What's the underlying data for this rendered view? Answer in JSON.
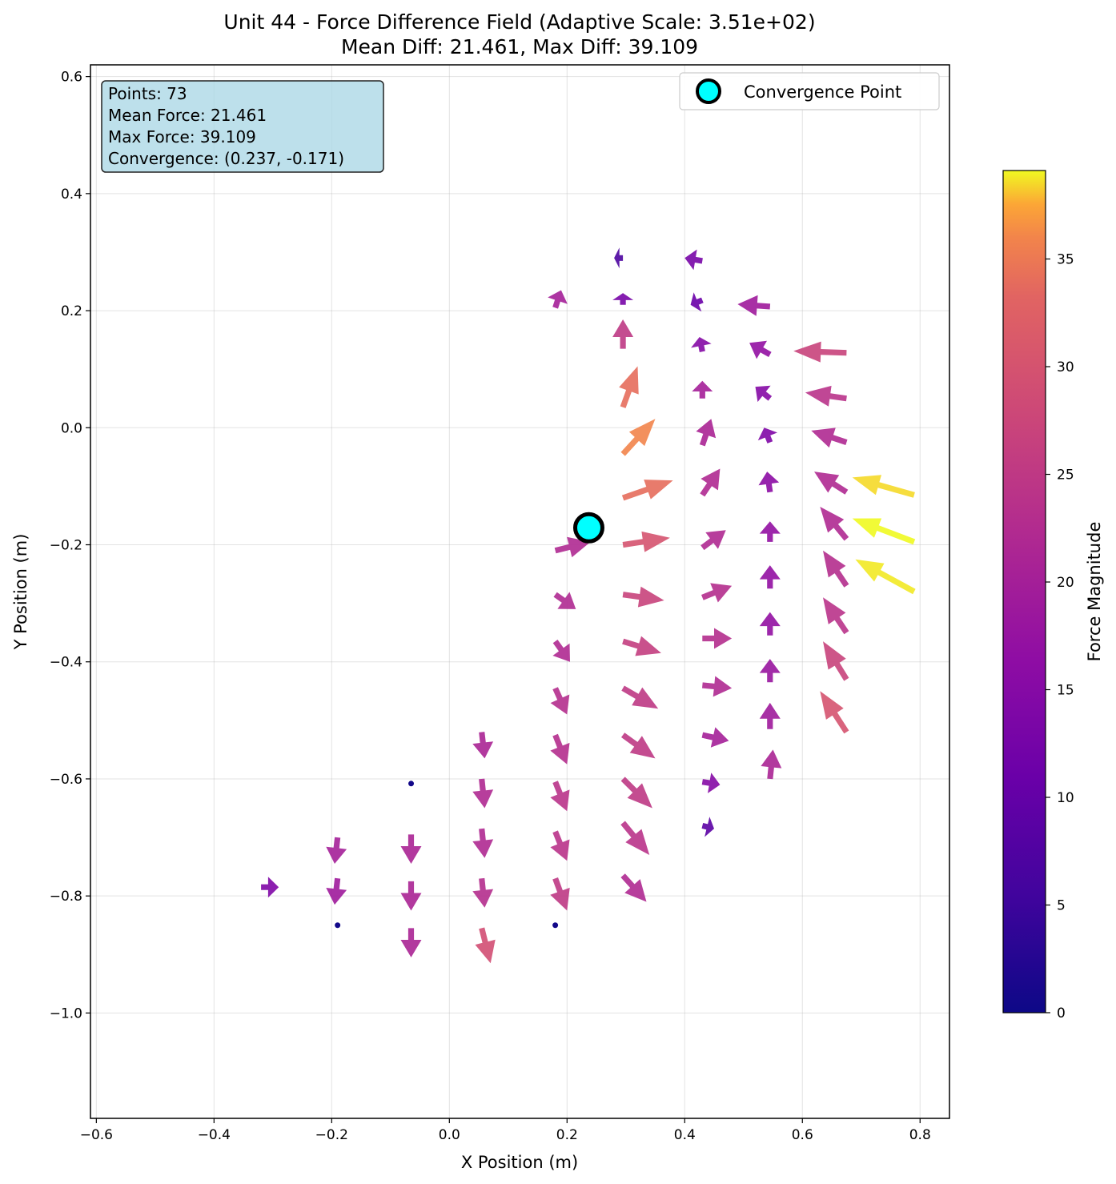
{
  "chart_data": {
    "type": "quiver",
    "title": "Unit 44 - Force Difference Field (Adaptive Scale: 3.51e+02)",
    "subtitle": "Mean Diff: 21.461, Max Diff: 39.109",
    "xlabel": "X Position (m)",
    "ylabel": "Y Position (m)",
    "xlim": [
      -0.61,
      0.85
    ],
    "ylim": [
      -1.18,
      0.62
    ],
    "xticks": [
      "−0.6",
      "−0.4",
      "−0.2",
      "0.0",
      "0.2",
      "0.4",
      "0.6",
      "0.8"
    ],
    "yticks": [
      "0.6",
      "0.4",
      "0.2",
      "0.0",
      "−0.2",
      "−0.4",
      "−0.6",
      "−0.8",
      "−1.0"
    ],
    "grid": true,
    "info_box": {
      "lines": [
        "Points: 73",
        "Mean Force: 21.461",
        "Max Force: 39.109",
        "Convergence: (0.237, -0.171)"
      ],
      "background": "#add8e6"
    },
    "legend": {
      "label": "Convergence Point",
      "location": "upper right"
    },
    "convergence_point": {
      "x": 0.237,
      "y": -0.171,
      "color": "#00ffff"
    },
    "colorbar": {
      "label": "Force Magnitude",
      "colormap": "plasma",
      "range": [
        0,
        39.109
      ],
      "ticks": [
        "0",
        "5",
        "10",
        "15",
        "20",
        "25",
        "30",
        "35"
      ]
    },
    "vectors": [
      {
        "x": 0.79,
        "y": -0.115,
        "u": -0.105,
        "v": 0.03,
        "m": 38.5
      },
      {
        "x": 0.79,
        "y": -0.195,
        "u": -0.105,
        "v": 0.04,
        "m": 39.1
      },
      {
        "x": 0.79,
        "y": -0.28,
        "u": -0.1,
        "v": 0.055,
        "m": 38.8
      },
      {
        "x": 0.675,
        "y": 0.128,
        "u": -0.09,
        "v": 0.003,
        "m": 27
      },
      {
        "x": 0.675,
        "y": 0.05,
        "u": -0.07,
        "v": 0.01,
        "m": 24
      },
      {
        "x": 0.675,
        "y": -0.025,
        "u": -0.06,
        "v": 0.02,
        "m": 22
      },
      {
        "x": 0.675,
        "y": -0.11,
        "u": -0.055,
        "v": 0.035,
        "m": 22
      },
      {
        "x": 0.675,
        "y": -0.19,
        "u": -0.045,
        "v": 0.055,
        "m": 22
      },
      {
        "x": 0.675,
        "y": -0.27,
        "u": -0.04,
        "v": 0.06,
        "m": 23
      },
      {
        "x": 0.675,
        "y": -0.35,
        "u": -0.04,
        "v": 0.06,
        "m": 24
      },
      {
        "x": 0.675,
        "y": -0.43,
        "u": -0.04,
        "v": 0.065,
        "m": 27
      },
      {
        "x": 0.675,
        "y": -0.52,
        "u": -0.045,
        "v": 0.07,
        "m": 30
      },
      {
        "x": 0.545,
        "y": 0.207,
        "u": -0.055,
        "v": 0.004,
        "m": 19
      },
      {
        "x": 0.545,
        "y": 0.125,
        "u": -0.035,
        "v": 0.02,
        "m": 17
      },
      {
        "x": 0.545,
        "y": 0.05,
        "u": -0.025,
        "v": 0.02,
        "m": 15
      },
      {
        "x": 0.545,
        "y": -0.025,
        "u": -0.01,
        "v": 0.025,
        "m": 14
      },
      {
        "x": 0.545,
        "y": -0.11,
        "u": -0.005,
        "v": 0.035,
        "m": 16
      },
      {
        "x": 0.545,
        "y": -0.195,
        "u": 0.0,
        "v": 0.035,
        "m": 17
      },
      {
        "x": 0.545,
        "y": -0.275,
        "u": 0.0,
        "v": 0.04,
        "m": 17
      },
      {
        "x": 0.545,
        "y": -0.355,
        "u": 0.0,
        "v": 0.04,
        "m": 17
      },
      {
        "x": 0.545,
        "y": -0.435,
        "u": 0.0,
        "v": 0.04,
        "m": 18
      },
      {
        "x": 0.545,
        "y": -0.515,
        "u": 0.0,
        "v": 0.045,
        "m": 19
      },
      {
        "x": 0.545,
        "y": -0.6,
        "u": 0.005,
        "v": 0.05,
        "m": 21
      },
      {
        "x": 0.43,
        "y": 0.285,
        "u": -0.03,
        "v": 0.005,
        "m": 13
      },
      {
        "x": 0.43,
        "y": 0.218,
        "u": -0.02,
        "v": -0.008,
        "m": 11
      },
      {
        "x": 0.43,
        "y": 0.13,
        "u": -0.005,
        "v": 0.025,
        "m": 15
      },
      {
        "x": 0.43,
        "y": 0.05,
        "u": 0.0,
        "v": 0.03,
        "m": 20
      },
      {
        "x": 0.43,
        "y": -0.03,
        "u": 0.015,
        "v": 0.045,
        "m": 21
      },
      {
        "x": 0.43,
        "y": -0.115,
        "u": 0.03,
        "v": 0.045,
        "m": 22
      },
      {
        "x": 0.43,
        "y": -0.205,
        "u": 0.04,
        "v": 0.03,
        "m": 22
      },
      {
        "x": 0.43,
        "y": -0.29,
        "u": 0.05,
        "v": 0.02,
        "m": 23
      },
      {
        "x": 0.43,
        "y": -0.36,
        "u": 0.05,
        "v": 0.0,
        "m": 23
      },
      {
        "x": 0.43,
        "y": -0.44,
        "u": 0.05,
        "v": -0.005,
        "m": 22
      },
      {
        "x": 0.43,
        "y": -0.525,
        "u": 0.045,
        "v": -0.01,
        "m": 20
      },
      {
        "x": 0.43,
        "y": -0.605,
        "u": 0.03,
        "v": -0.005,
        "m": 15
      },
      {
        "x": 0.43,
        "y": -0.68,
        "u": 0.02,
        "v": -0.005,
        "m": 9
      },
      {
        "x": 0.295,
        "y": 0.29,
        "u": -0.015,
        "v": 0.0,
        "m": 7
      },
      {
        "x": 0.295,
        "y": 0.21,
        "u": 0.0,
        "v": 0.02,
        "m": 13
      },
      {
        "x": 0.295,
        "y": 0.135,
        "u": 0.0,
        "v": 0.05,
        "m": 25
      },
      {
        "x": 0.295,
        "y": 0.035,
        "u": 0.025,
        "v": 0.07,
        "m": 34
      },
      {
        "x": 0.295,
        "y": -0.045,
        "u": 0.055,
        "v": 0.06,
        "m": 36
      },
      {
        "x": 0.295,
        "y": -0.12,
        "u": 0.085,
        "v": 0.03,
        "m": 34
      },
      {
        "x": 0.295,
        "y": -0.2,
        "u": 0.08,
        "v": 0.012,
        "m": 30
      },
      {
        "x": 0.295,
        "y": -0.285,
        "u": 0.07,
        "v": -0.01,
        "m": 27
      },
      {
        "x": 0.295,
        "y": -0.365,
        "u": 0.065,
        "v": -0.02,
        "m": 26
      },
      {
        "x": 0.295,
        "y": -0.445,
        "u": 0.06,
        "v": -0.035,
        "m": 25
      },
      {
        "x": 0.295,
        "y": -0.525,
        "u": 0.055,
        "v": -0.04,
        "m": 25
      },
      {
        "x": 0.295,
        "y": -0.6,
        "u": 0.05,
        "v": -0.05,
        "m": 25
      },
      {
        "x": 0.295,
        "y": -0.675,
        "u": 0.045,
        "v": -0.055,
        "m": 24
      },
      {
        "x": 0.295,
        "y": -0.765,
        "u": 0.04,
        "v": -0.045,
        "m": 22
      },
      {
        "x": 0.18,
        "y": 0.205,
        "u": 0.01,
        "v": 0.03,
        "m": 20
      },
      {
        "x": 0.18,
        "y": -0.21,
        "u": 0.06,
        "v": 0.015,
        "m": 22
      },
      {
        "x": 0.18,
        "y": -0.285,
        "u": 0.035,
        "v": -0.025,
        "m": 22
      },
      {
        "x": 0.18,
        "y": -0.365,
        "u": 0.025,
        "v": -0.035,
        "m": 22
      },
      {
        "x": 0.18,
        "y": -0.445,
        "u": 0.02,
        "v": -0.045,
        "m": 23
      },
      {
        "x": 0.18,
        "y": -0.525,
        "u": 0.02,
        "v": -0.05,
        "m": 23
      },
      {
        "x": 0.18,
        "y": -0.605,
        "u": 0.02,
        "v": -0.05,
        "m": 24
      },
      {
        "x": 0.18,
        "y": -0.69,
        "u": 0.02,
        "v": -0.05,
        "m": 24
      },
      {
        "x": 0.18,
        "y": -0.77,
        "u": 0.02,
        "v": -0.055,
        "m": 25
      },
      {
        "x": 0.18,
        "y": -0.85,
        "u": 0.0,
        "v": 0.0,
        "m": 0.5
      },
      {
        "x": 0.055,
        "y": -0.52,
        "u": 0.005,
        "v": -0.045,
        "m": 21
      },
      {
        "x": 0.055,
        "y": -0.6,
        "u": 0.005,
        "v": -0.05,
        "m": 22
      },
      {
        "x": 0.055,
        "y": -0.685,
        "u": 0.005,
        "v": -0.05,
        "m": 22
      },
      {
        "x": 0.055,
        "y": -0.77,
        "u": 0.005,
        "v": -0.05,
        "m": 23
      },
      {
        "x": 0.055,
        "y": -0.855,
        "u": 0.015,
        "v": -0.06,
        "m": 29
      },
      {
        "x": -0.065,
        "y": -0.608,
        "u": 0.0,
        "v": 0.0,
        "m": 0.5
      },
      {
        "x": -0.065,
        "y": -0.695,
        "u": 0.0,
        "v": -0.05,
        "m": 21
      },
      {
        "x": -0.065,
        "y": -0.775,
        "u": 0.0,
        "v": -0.05,
        "m": 21
      },
      {
        "x": -0.065,
        "y": -0.855,
        "u": 0.0,
        "v": -0.05,
        "m": 21
      },
      {
        "x": -0.19,
        "y": -0.7,
        "u": -0.005,
        "v": -0.045,
        "m": 20
      },
      {
        "x": -0.19,
        "y": -0.77,
        "u": -0.005,
        "v": -0.045,
        "m": 19
      },
      {
        "x": -0.19,
        "y": -0.85,
        "u": 0.0,
        "v": 0.0,
        "m": 0.5
      },
      {
        "x": -0.32,
        "y": -0.785,
        "u": 0.03,
        "v": 0.0,
        "m": 14
      }
    ]
  }
}
